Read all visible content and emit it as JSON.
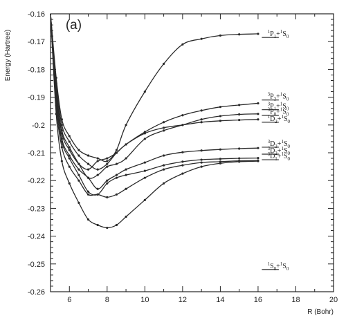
{
  "chart_data": {
    "type": "line",
    "panel_label": "(a)",
    "xlabel": "R (Bohr)",
    "ylabel": "Energy (Hartree)",
    "xlim": [
      5,
      20
    ],
    "ylim": [
      -0.26,
      -0.16
    ],
    "x_ticks": [
      "6",
      "8",
      "10",
      "12",
      "14",
      "16",
      "18",
      "20"
    ],
    "y_ticks": [
      "-0.16",
      "-0.17",
      "-0.18",
      "-0.19",
      "-0.2",
      "-0.21",
      "-0.22",
      "-0.23",
      "-0.24",
      "-0.25",
      "-0.26"
    ],
    "grid": false,
    "series": [
      {
        "x": [
          5.0,
          5.3,
          5.6,
          6.0,
          6.5,
          7.0,
          7.5,
          8.0,
          8.5,
          9.0,
          10.0,
          11.0,
          12.0,
          13.0,
          14.0,
          15.0,
          16.0
        ],
        "y": [
          -0.16,
          -0.183,
          -0.198,
          -0.204,
          -0.209,
          -0.211,
          -0.212,
          -0.213,
          -0.209,
          -0.2,
          -0.188,
          -0.178,
          -0.171,
          -0.169,
          -0.1678,
          -0.1674,
          -0.1672
        ]
      },
      {
        "x": [
          5.0,
          5.3,
          5.6,
          6.0,
          6.5,
          7.0,
          7.5,
          8.0,
          8.5,
          9.0,
          10.0,
          11.0,
          12.0,
          13.0,
          14.0,
          15.0,
          16.0
        ],
        "y": [
          -0.16,
          -0.185,
          -0.2,
          -0.206,
          -0.211,
          -0.214,
          -0.216,
          -0.214,
          -0.21,
          -0.207,
          -0.2025,
          -0.199,
          -0.1965,
          -0.1948,
          -0.1935,
          -0.1928,
          -0.1922
        ]
      },
      {
        "x": [
          5.0,
          5.3,
          5.6,
          6.0,
          6.5,
          7.0,
          7.5,
          8.0,
          8.5,
          9.0,
          10.0,
          11.0,
          12.0,
          13.0,
          14.0,
          15.0,
          16.0
        ],
        "y": [
          -0.16,
          -0.187,
          -0.202,
          -0.208,
          -0.214,
          -0.219,
          -0.218,
          -0.215,
          -0.214,
          -0.212,
          -0.205,
          -0.202,
          -0.2,
          -0.198,
          -0.1968,
          -0.1962,
          -0.196
        ]
      },
      {
        "x": [
          5.0,
          5.3,
          5.6,
          6.0,
          6.5,
          7.0,
          7.5,
          8.0,
          8.5,
          9.0,
          10.0,
          11.0,
          12.0,
          13.0,
          14.0,
          15.0,
          16.0
        ],
        "y": [
          -0.16,
          -0.188,
          -0.203,
          -0.209,
          -0.214,
          -0.216,
          -0.213,
          -0.212,
          -0.21,
          -0.207,
          -0.203,
          -0.201,
          -0.2,
          -0.199,
          -0.1985,
          -0.1982,
          -0.198
        ]
      },
      {
        "x": [
          5.0,
          5.3,
          5.6,
          6.0,
          6.5,
          7.0,
          7.5,
          8.0,
          8.5,
          9.0,
          10.0,
          11.0,
          12.0,
          13.0,
          14.0,
          15.0,
          16.0
        ],
        "y": [
          -0.16,
          -0.19,
          -0.205,
          -0.211,
          -0.216,
          -0.219,
          -0.223,
          -0.22,
          -0.218,
          -0.216,
          -0.2135,
          -0.211,
          -0.2098,
          -0.2092,
          -0.2088,
          -0.2085,
          -0.2083
        ]
      },
      {
        "x": [
          5.0,
          5.3,
          5.6,
          6.0,
          6.5,
          7.0,
          7.5,
          8.0,
          8.5,
          9.0,
          10.0,
          11.0,
          12.0,
          13.0,
          14.0,
          15.0,
          16.0
        ],
        "y": [
          -0.16,
          -0.191,
          -0.206,
          -0.212,
          -0.218,
          -0.224,
          -0.225,
          -0.221,
          -0.219,
          -0.218,
          -0.2165,
          -0.2145,
          -0.2132,
          -0.2125,
          -0.2122,
          -0.212,
          -0.2119
        ]
      },
      {
        "x": [
          5.0,
          5.3,
          5.6,
          6.0,
          6.5,
          7.0,
          7.5,
          8.0,
          8.5,
          9.0,
          10.0,
          11.0,
          12.0,
          13.0,
          14.0,
          15.0,
          16.0
        ],
        "y": [
          -0.16,
          -0.193,
          -0.208,
          -0.215,
          -0.22,
          -0.225,
          -0.225,
          -0.226,
          -0.225,
          -0.223,
          -0.219,
          -0.216,
          -0.2145,
          -0.2135,
          -0.2132,
          -0.2129,
          -0.2128
        ]
      },
      {
        "x": [
          5.0,
          5.3,
          5.6,
          6.0,
          6.5,
          7.0,
          7.5,
          8.0,
          8.5,
          9.0,
          10.0,
          11.0,
          12.0,
          13.0,
          14.0,
          15.0,
          16.0
        ],
        "y": [
          -0.16,
          -0.196,
          -0.213,
          -0.221,
          -0.228,
          -0.234,
          -0.236,
          -0.237,
          -0.236,
          -0.233,
          -0.227,
          -0.221,
          -0.2175,
          -0.215,
          -0.2138,
          -0.2132,
          -0.213
        ]
      }
    ],
    "asymptote_labels": [
      {
        "sup1": "1",
        "l1": "P",
        "sub1": "1",
        "sup2": "1",
        "l2": "S",
        "sub2": "0",
        "y": -0.1685
      },
      {
        "sup1": "3",
        "l1": "P",
        "sub1": "2",
        "sup2": "1",
        "l2": "S",
        "sub2": "0",
        "y": -0.191
      },
      {
        "sup1": "3",
        "l1": "P",
        "sub1": "1",
        "sup2": "1",
        "l2": "S",
        "sub2": "0",
        "y": -0.1945
      },
      {
        "sup1": "3",
        "l1": "P",
        "sub1": "0",
        "sup2": "1",
        "l2": "S",
        "sub2": "0",
        "y": -0.1965
      },
      {
        "sup1": "1",
        "l1": "D",
        "sub1": "2",
        "sup2": "1",
        "l2": "S",
        "sub2": "0",
        "y": -0.199
      },
      {
        "sup1": "3",
        "l1": "D",
        "sub1": "3",
        "sup2": "1",
        "l2": "S",
        "sub2": "0",
        "y": -0.208
      },
      {
        "sup1": "3",
        "l1": "D",
        "sub1": "2",
        "sup2": "1",
        "l2": "S",
        "sub2": "0",
        "y": -0.2105
      },
      {
        "sup1": "3",
        "l1": "D",
        "sub1": "1",
        "sup2": "1",
        "l2": "S",
        "sub2": "0",
        "y": -0.2125
      },
      {
        "sup1": "1",
        "l1": "S",
        "sub1": "0",
        "sup2": "1",
        "l2": "S",
        "sub2": "0",
        "y": -0.252
      }
    ]
  }
}
